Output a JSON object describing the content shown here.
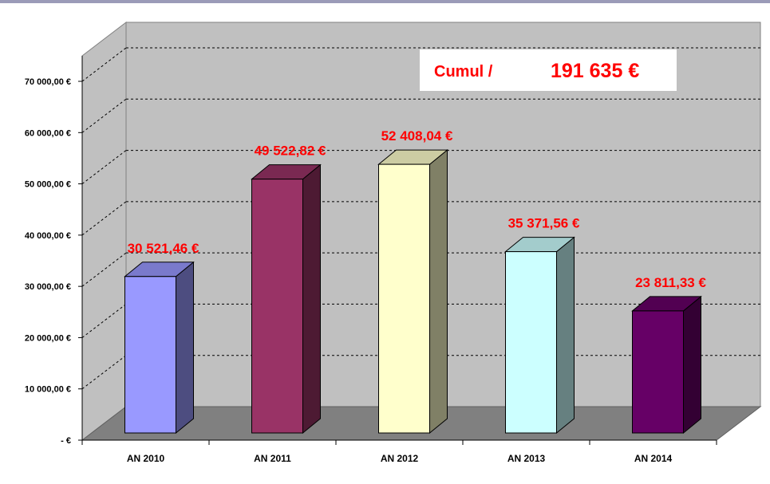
{
  "chart_data": {
    "type": "bar",
    "title": "",
    "xlabel": "",
    "ylabel": "",
    "categories": [
      "AN 2010",
      "AN 2011",
      "AN 2012",
      "AN 2013",
      "AN 2014"
    ],
    "values": [
      30521.46,
      49522.82,
      52408.04,
      35371.56,
      23811.33
    ],
    "value_labels": [
      "30 521,46 €",
      "49 522,82 €",
      "52 408,04 €",
      "35 371,56 €",
      "23 811,33 €"
    ],
    "ylim": [
      0,
      80000
    ],
    "yticks": [
      0,
      10000,
      20000,
      30000,
      40000,
      50000,
      60000,
      70000
    ],
    "ytick_labels": [
      "-   €",
      "10 000,00 €",
      "20 000,00 €",
      "30 000,00 €",
      "40 000,00 €",
      "50 000,00 €",
      "60 000,00 €",
      "70 000,00 €"
    ],
    "grid": true,
    "three_d": true,
    "bar_colors": [
      {
        "front": "#9999ff",
        "side": "#4d4d80",
        "top": "#7a7acc"
      },
      {
        "front": "#993366",
        "side": "#4d1a33",
        "top": "#7a2952"
      },
      {
        "front": "#ffffcc",
        "side": "#808066",
        "top": "#ccccA3"
      },
      {
        "front": "#ccffff",
        "side": "#668080",
        "top": "#a3cccc"
      },
      {
        "front": "#660066",
        "side": "#330033",
        "top": "#520052"
      }
    ],
    "colors": {
      "wall": "#c0c0c0",
      "floor": "#808080",
      "value_text": "#ff0000",
      "top_rule": "#9b9bb8"
    },
    "annotation": {
      "label": "Cumul /",
      "value": "191 635 €"
    }
  }
}
